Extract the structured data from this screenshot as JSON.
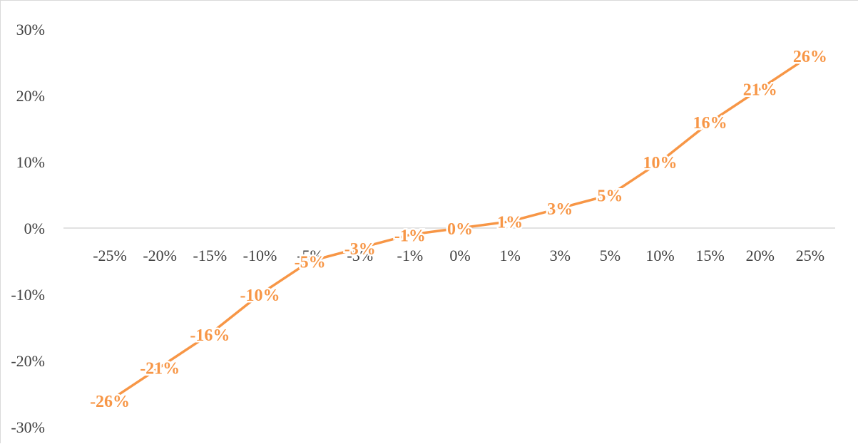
{
  "chart_data": {
    "type": "line",
    "title": "",
    "xlabel": "",
    "ylabel": "",
    "categories": [
      "-25%",
      "-20%",
      "-15%",
      "-10%",
      "-5%",
      "-3%",
      "-1%",
      "0%",
      "1%",
      "3%",
      "5%",
      "10%",
      "15%",
      "20%",
      "25%"
    ],
    "series": [
      {
        "values": [
          -26,
          -21,
          -16,
          -10,
          -5,
          -3,
          -1,
          0,
          1,
          3,
          5,
          10,
          16,
          21,
          26
        ],
        "data_labels": [
          "-26%",
          "-21%",
          "-16%",
          "-10%",
          "-5%",
          "-3%",
          "-1%",
          "0%",
          "1%",
          "3%",
          "5%",
          "10%",
          "16%",
          "21%",
          "26%"
        ],
        "color": "#f79646"
      }
    ],
    "y_ticks": [
      30,
      20,
      10,
      0,
      -10,
      -20,
      -30
    ],
    "y_tick_labels": [
      "30%",
      "20%",
      "10%",
      "0%",
      "-10%",
      "-20%",
      "-30%"
    ],
    "ylim": [
      -30,
      30
    ],
    "grid": false,
    "legend": "none",
    "axis_color": "#d9d9d9",
    "text_color": "#404040"
  }
}
